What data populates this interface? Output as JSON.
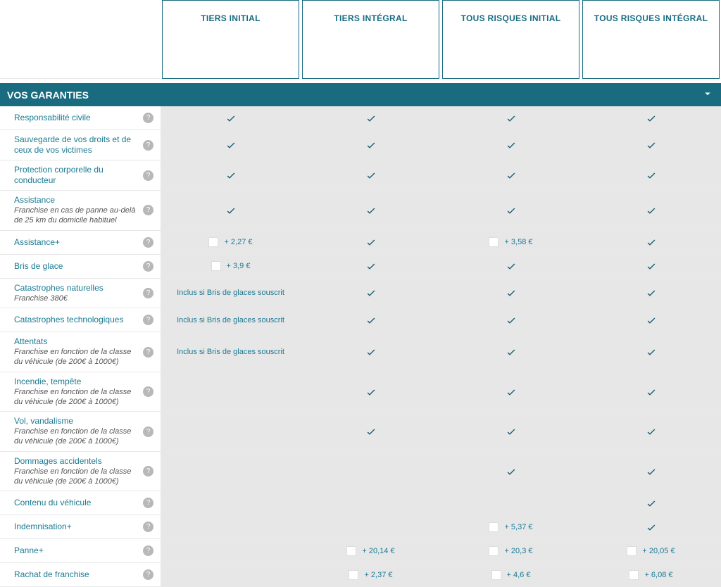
{
  "colors": {
    "primary": "#196b80",
    "check": "#1a5f74",
    "link": "#1a7a92",
    "stripe": "#e7e7e8",
    "help": "#b8b8b8"
  },
  "plans": [
    "TIERS INITIAL",
    "TIERS INTÉGRAL",
    "TOUS RISQUES INITIAL",
    "TOUS RISQUES INTÉGRAL"
  ],
  "section_title": "VOS GARANTIES",
  "rows": [
    {
      "label": "Responsabilité civile",
      "cells": [
        {
          "t": "check"
        },
        {
          "t": "check"
        },
        {
          "t": "check"
        },
        {
          "t": "check"
        }
      ]
    },
    {
      "label": "Sauvegarde de vos droits et de ceux de vos victimes",
      "cells": [
        {
          "t": "check"
        },
        {
          "t": "check"
        },
        {
          "t": "check"
        },
        {
          "t": "check"
        }
      ]
    },
    {
      "label": "Protection corporelle du conducteur",
      "cells": [
        {
          "t": "check"
        },
        {
          "t": "check"
        },
        {
          "t": "check"
        },
        {
          "t": "check"
        }
      ]
    },
    {
      "label": "Assistance",
      "sub": "Franchise en cas de panne au-delà de 25 km du domicile habituel",
      "cells": [
        {
          "t": "check"
        },
        {
          "t": "check"
        },
        {
          "t": "check"
        },
        {
          "t": "check"
        }
      ]
    },
    {
      "label": "Assistance+",
      "cells": [
        {
          "t": "opt",
          "price": "+ 2,27 €"
        },
        {
          "t": "check"
        },
        {
          "t": "opt",
          "price": "+ 3,58 €"
        },
        {
          "t": "check"
        }
      ]
    },
    {
      "label": "Bris de glace",
      "cells": [
        {
          "t": "opt",
          "price": "+ 3,9 €"
        },
        {
          "t": "check"
        },
        {
          "t": "check"
        },
        {
          "t": "check"
        }
      ]
    },
    {
      "label": "Catastrophes naturelles",
      "sub": "Franchise 380€",
      "cells": [
        {
          "t": "text",
          "text": "Inclus si Bris de glaces souscrit"
        },
        {
          "t": "check"
        },
        {
          "t": "check"
        },
        {
          "t": "check"
        }
      ]
    },
    {
      "label": "Catastrophes technologiques",
      "cells": [
        {
          "t": "text",
          "text": "Inclus si Bris de glaces souscrit"
        },
        {
          "t": "check"
        },
        {
          "t": "check"
        },
        {
          "t": "check"
        }
      ]
    },
    {
      "label": "Attentats",
      "sub": "Franchise en fonction de la classe du véhicule (de 200€ à 1000€)",
      "cells": [
        {
          "t": "text",
          "text": "Inclus si Bris de glaces souscrit"
        },
        {
          "t": "check"
        },
        {
          "t": "check"
        },
        {
          "t": "check"
        }
      ]
    },
    {
      "label": "Incendie, tempête",
      "sub": "Franchise en fonction de la classe du véhicule (de 200€ à 1000€)",
      "cells": [
        {
          "t": "empty"
        },
        {
          "t": "check"
        },
        {
          "t": "check"
        },
        {
          "t": "check"
        }
      ]
    },
    {
      "label": "Vol, vandalisme",
      "sub": "Franchise en fonction de la classe du véhicule (de 200€ à 1000€)",
      "cells": [
        {
          "t": "empty"
        },
        {
          "t": "check"
        },
        {
          "t": "check"
        },
        {
          "t": "check"
        }
      ]
    },
    {
      "label": "Dommages accidentels",
      "sub": "Franchise en fonction de la classe du véhicule (de 200€ à 1000€)",
      "cells": [
        {
          "t": "empty"
        },
        {
          "t": "empty"
        },
        {
          "t": "check"
        },
        {
          "t": "check"
        }
      ]
    },
    {
      "label": "Contenu du véhicule",
      "cells": [
        {
          "t": "empty"
        },
        {
          "t": "empty"
        },
        {
          "t": "empty"
        },
        {
          "t": "check"
        }
      ]
    },
    {
      "label": "Indemnisation+",
      "cells": [
        {
          "t": "empty"
        },
        {
          "t": "empty"
        },
        {
          "t": "opt",
          "price": "+ 5,37 €"
        },
        {
          "t": "check"
        }
      ]
    },
    {
      "label": "Panne+",
      "cells": [
        {
          "t": "empty"
        },
        {
          "t": "opt",
          "price": "+ 20,14 €"
        },
        {
          "t": "opt",
          "price": "+ 20,3 €"
        },
        {
          "t": "opt",
          "price": "+ 20,05 €"
        }
      ]
    },
    {
      "label": "Rachat de franchise",
      "cells": [
        {
          "t": "empty"
        },
        {
          "t": "opt",
          "price": "+ 2,37 €"
        },
        {
          "t": "opt",
          "price": "+ 4,6 €"
        },
        {
          "t": "opt",
          "price": "+ 6,08 €"
        }
      ]
    }
  ]
}
